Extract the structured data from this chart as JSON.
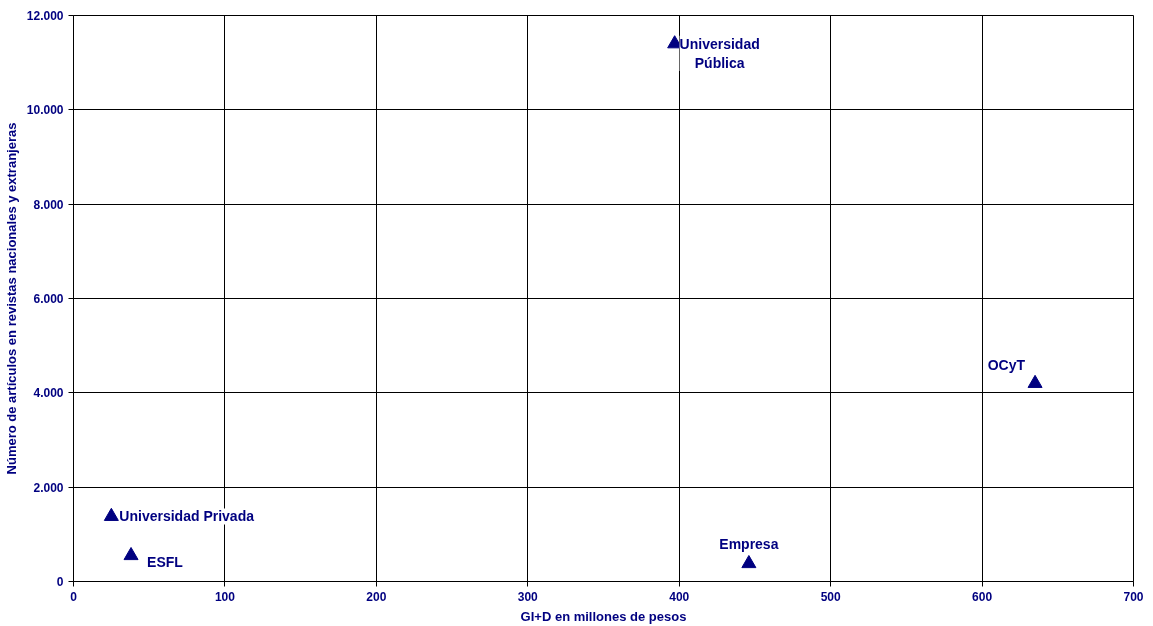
{
  "chart_data": {
    "type": "scatter",
    "xlabel": "GI+D en millones de pesos",
    "ylabel": "Número de artículos en revistas nacionales y extranjeras",
    "x": [
      397,
      635,
      25,
      38,
      446
    ],
    "series": [
      {
        "color": "#000080",
        "values": [
          11400,
          4200,
          1380,
          550,
          380
        ]
      }
    ],
    "annotations": [
      {
        "text": "Universidad\nPública",
        "x": 397,
        "y": 11400
      },
      {
        "text": "OCyT",
        "x": 635,
        "y": 4200
      },
      {
        "text": "Universidad Privada",
        "x": 25,
        "y": 1380
      },
      {
        "text": "ESFL",
        "x": 38,
        "y": 550
      },
      {
        "text": "Empresa",
        "x": 446,
        "y": 380
      }
    ],
    "xlim": [
      0,
      700
    ],
    "xticks": [
      0,
      100,
      200,
      300,
      400,
      500,
      600,
      700
    ],
    "ylim": [
      0,
      12000
    ],
    "yticks": [
      0,
      {
        "value": 2000,
        "label": "2.000"
      },
      {
        "value": 4000,
        "label": "4.000"
      },
      {
        "value": 6000,
        "label": "6.000"
      },
      {
        "value": 8000,
        "label": "8.000"
      },
      {
        "value": 10000,
        "label": "10.000"
      },
      {
        "value": 12000,
        "label": "12.000"
      }
    ],
    "grid": true,
    "marker": "triangle"
  }
}
